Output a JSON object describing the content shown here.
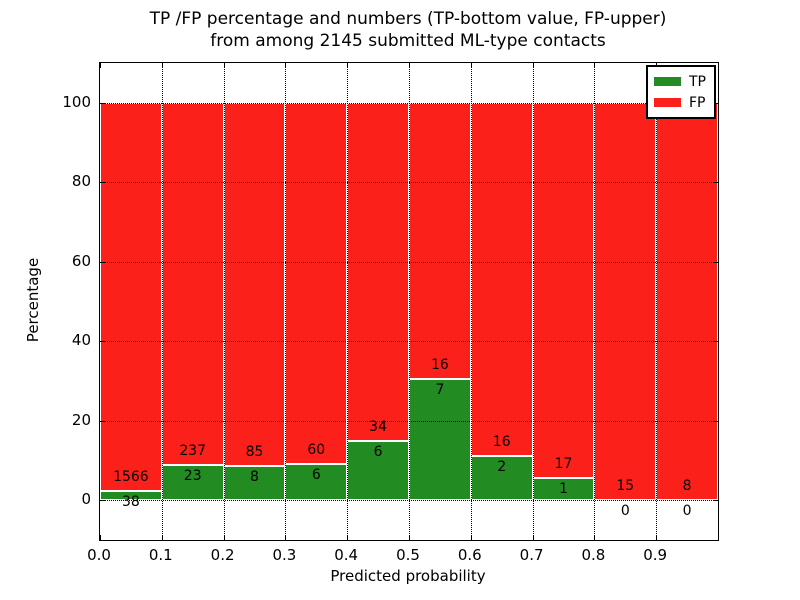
{
  "figure": {
    "title_line1": "TP /FP percentage and numbers (TP-bottom value, FP-upper)",
    "title_line2": "from among 2145 submitted ML-type contacts",
    "xlabel": "Predicted probability",
    "ylabel": "Percentage"
  },
  "legend": {
    "position": "upper right",
    "items": [
      {
        "label": "TP",
        "color": "#228b22"
      },
      {
        "label": "FP",
        "color": "#fb211a"
      }
    ]
  },
  "chart_data": {
    "type": "bar",
    "subtype": "stacked-percentage-histogram",
    "title": "TP /FP percentage and numbers (TP-bottom value, FP-upper) from among 2145 submitted ML-type contacts",
    "xlabel": "Predicted probability",
    "ylabel": "Percentage",
    "total_contacts": 2145,
    "x_bin_edges": [
      0.0,
      0.1,
      0.2,
      0.3,
      0.4,
      0.5,
      0.6,
      0.7,
      0.8,
      0.9,
      1.0
    ],
    "x_tick_labels": [
      "0.0",
      "0.1",
      "0.2",
      "0.3",
      "0.4",
      "0.5",
      "0.6",
      "0.7",
      "0.8",
      "0.9"
    ],
    "y_ticks": [
      0,
      20,
      40,
      60,
      80,
      100
    ],
    "ylim": [
      -10,
      110
    ],
    "xlim": [
      0.0,
      1.0
    ],
    "grid": "dotted black, drawn above bars",
    "legend_position": "upper right",
    "series": [
      {
        "name": "TP",
        "color": "#228b22",
        "counts": [
          38,
          23,
          8,
          6,
          6,
          7,
          2,
          1,
          0,
          0
        ]
      },
      {
        "name": "FP",
        "color": "#fb211a",
        "counts": [
          1566,
          237,
          85,
          60,
          34,
          16,
          16,
          17,
          15,
          8
        ]
      }
    ],
    "tp_percent_of_bin": [
      2.37,
      8.85,
      8.6,
      9.09,
      15.0,
      30.43,
      11.11,
      5.56,
      0.0,
      0.0
    ],
    "bar_value_labels": "FP count printed above TP/FP boundary, TP count printed below boundary"
  }
}
